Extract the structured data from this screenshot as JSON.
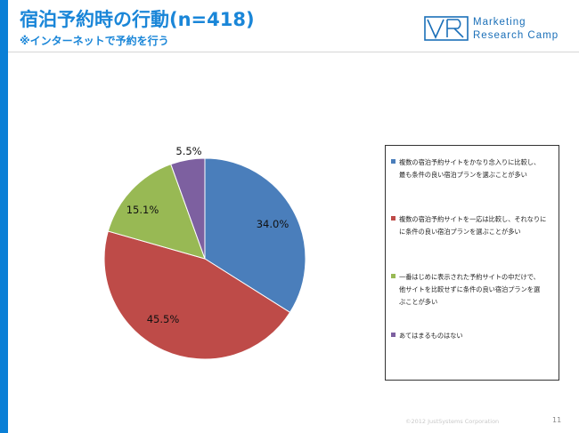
{
  "header": {
    "title": "宿泊予約時の行動(n=418)",
    "subtitle": "※インターネットで予約を行う"
  },
  "logo": {
    "line1": "Marketing",
    "line2": "Research Camp",
    "mark_color": "#1a6fb8"
  },
  "chart_data": {
    "type": "pie",
    "start_angle": "12 o'clock",
    "direction": "clockwise",
    "legend_position": "right",
    "slices": [
      {
        "label": "複数の宿泊予約サイトをかなり念入りに比較し、最も条件の良い宿泊プランを選ぶことが多い",
        "value": 34.0,
        "display": "34.0%",
        "color": "#4a7ebb"
      },
      {
        "label": "複数の宿泊予約サイトを一応は比較し、それなりに条件の良い宿泊プランを選ぶことが多い",
        "value": 45.5,
        "display": "45.5%",
        "color": "#be4b48"
      },
      {
        "label": "一番はじめに表示された予約サイトの中だけで、他サイトを比較せずに条件の良い宿泊プランを選ぶことが多い",
        "value": 15.1,
        "display": "15.1%",
        "color": "#98b954"
      },
      {
        "label": "あてはまるものはない",
        "value": 5.5,
        "display": "5.5%",
        "color": "#7d60a0"
      }
    ]
  },
  "legend": {
    "items": [
      {
        "lines": [
          "複数の宿泊予約サイトをかなり念入りに比較し、",
          "最も条件の良い宿泊プランを選ぶことが多い"
        ]
      },
      {
        "lines": [
          "複数の宿泊予約サイトを一応は比較し、それなりに",
          "に条件の良い宿泊プランを選ぶことが多い"
        ]
      },
      {
        "lines": [
          "一番はじめに表示された予約サイトの中だけで、",
          "他サイトを比較せずに条件の良い宿泊プランを選",
          "ぶことが多い"
        ]
      },
      {
        "lines": [
          "あてはまるものはない"
        ]
      }
    ]
  },
  "footer": {
    "copyright": "©2012 JustSystems Corporation",
    "page": "11"
  }
}
